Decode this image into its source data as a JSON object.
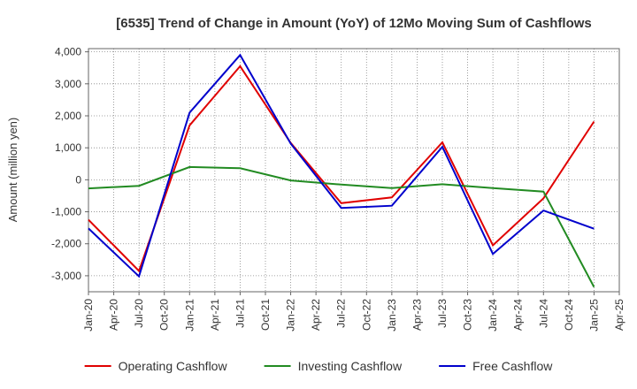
{
  "chart_data": {
    "type": "line",
    "title": "[6535]  Trend of Change in Amount (YoY) of 12Mo Moving Sum of Cashflows",
    "xlabel": "",
    "ylabel": "Amount (million yen)",
    "categories": [
      "Jan-20",
      "Apr-20",
      "Jul-20",
      "Oct-20",
      "Jan-21",
      "Apr-21",
      "Jul-21",
      "Oct-21",
      "Jan-22",
      "Apr-22",
      "Jul-22",
      "Oct-22",
      "Jan-23",
      "Apr-23",
      "Jul-23",
      "Oct-23",
      "Jan-24",
      "Apr-24",
      "Jul-24",
      "Oct-24",
      "Jan-25",
      "Apr-25"
    ],
    "ylim": [
      -3500,
      4100
    ],
    "yticks": [
      4000,
      3000,
      2000,
      1000,
      0,
      -1000,
      -2000,
      -3000
    ],
    "ytick_labels": [
      "4,000",
      "3,000",
      "2,000",
      "1,000",
      "0",
      "-1,000",
      "-2,000",
      "-3,000"
    ],
    "grid": true,
    "legend_position": "bottom",
    "series": [
      {
        "name": "Operating Cashflow",
        "color": "#e00000",
        "points": [
          [
            0,
            -1250
          ],
          [
            2,
            -2850
          ],
          [
            4,
            1700
          ],
          [
            6,
            3550
          ],
          [
            8,
            1150
          ],
          [
            10,
            -730
          ],
          [
            12,
            -550
          ],
          [
            14,
            1170
          ],
          [
            16,
            -2050
          ],
          [
            18,
            -580
          ],
          [
            20,
            1820
          ]
        ]
      },
      {
        "name": "Investing Cashflow",
        "color": "#228b22",
        "points": [
          [
            0,
            -270
          ],
          [
            2,
            -190
          ],
          [
            4,
            400
          ],
          [
            6,
            360
          ],
          [
            8,
            -20
          ],
          [
            10,
            -150
          ],
          [
            12,
            -260
          ],
          [
            14,
            -140
          ],
          [
            16,
            -260
          ],
          [
            18,
            -370
          ],
          [
            20,
            -3350
          ]
        ]
      },
      {
        "name": "Free Cashflow",
        "color": "#0000cc",
        "points": [
          [
            0,
            -1520
          ],
          [
            2,
            -3020
          ],
          [
            4,
            2100
          ],
          [
            6,
            3900
          ],
          [
            8,
            1130
          ],
          [
            10,
            -880
          ],
          [
            12,
            -810
          ],
          [
            14,
            1030
          ],
          [
            16,
            -2320
          ],
          [
            18,
            -960
          ],
          [
            20,
            -1530
          ]
        ]
      }
    ]
  }
}
